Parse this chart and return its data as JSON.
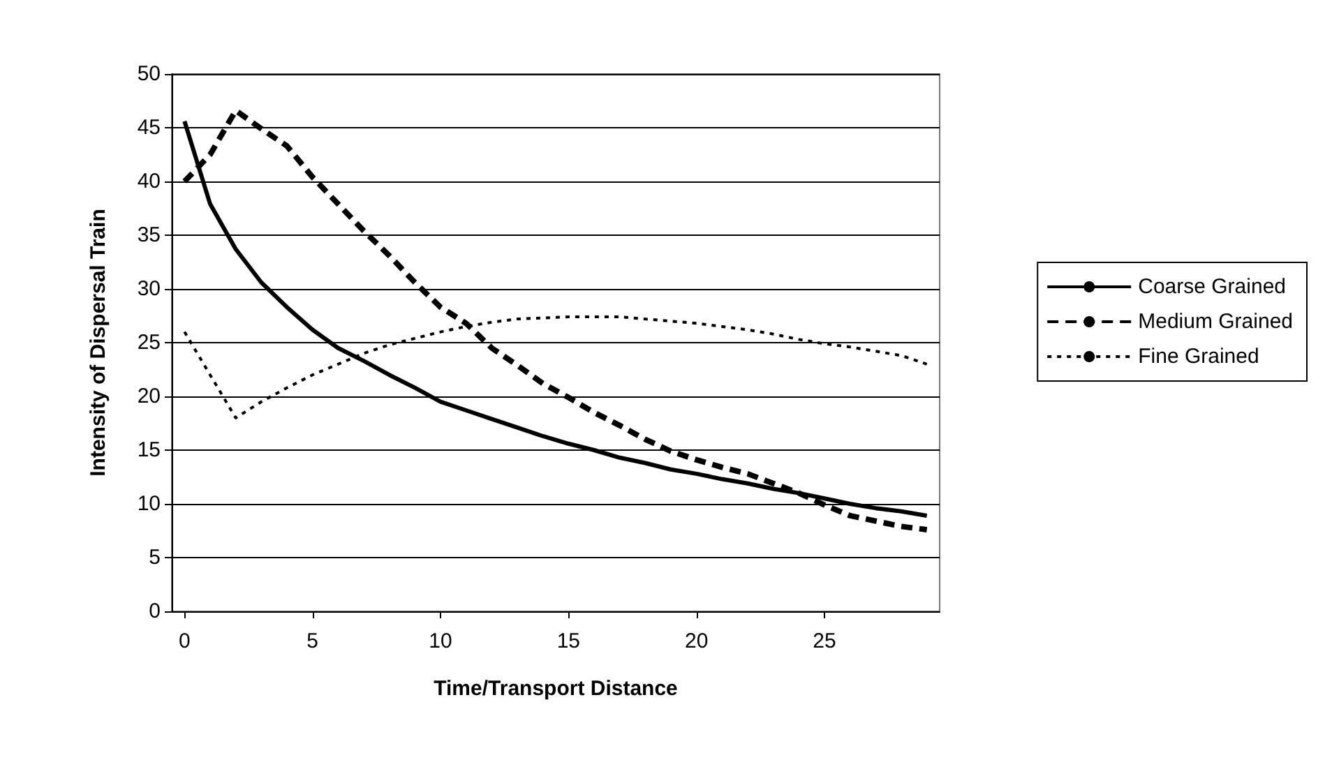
{
  "chart_data": {
    "type": "line",
    "xlabel": "Time/Transport Distance",
    "ylabel": "Intensity of Dispersal Train",
    "x": [
      0,
      1,
      2,
      3,
      4,
      5,
      6,
      7,
      8,
      9,
      10,
      11,
      12,
      13,
      14,
      15,
      16,
      17,
      18,
      19,
      20,
      21,
      22,
      23,
      24,
      25,
      26,
      27,
      28,
      29
    ],
    "xlim": [
      -0.5,
      29.5
    ],
    "xticks": [
      0,
      5,
      10,
      15,
      20,
      25
    ],
    "ylim": [
      0,
      50
    ],
    "yticks": [
      0,
      5,
      10,
      15,
      20,
      25,
      30,
      35,
      40,
      45,
      50
    ],
    "grid": "y",
    "legend": "right",
    "marker": "none",
    "series": [
      {
        "name": "Coarse Grained",
        "color": "#000000",
        "line_style": "solid",
        "values": [
          45.6,
          37.9,
          33.7,
          30.6,
          28.3,
          26.2,
          24.5,
          23.3,
          22.0,
          20.8,
          19.5,
          18.7,
          17.9,
          17.1,
          16.3,
          15.6,
          15.0,
          14.3,
          13.8,
          13.2,
          12.8,
          12.3,
          11.9,
          11.4,
          11.0,
          10.5,
          10.0,
          9.6,
          9.3,
          8.9
        ]
      },
      {
        "name": "Medium Grained",
        "color": "#000000",
        "line_style": "dashed",
        "values": [
          40,
          42.5,
          46.6,
          44.9,
          43.3,
          40.4,
          37.9,
          35.4,
          33.1,
          30.6,
          28.3,
          26.8,
          24.5,
          22.9,
          21.2,
          19.9,
          18.5,
          17.3,
          16.0,
          14.9,
          14.1,
          13.4,
          12.8,
          11.9,
          11.0,
          9.9,
          8.9,
          8.4,
          7.9,
          7.6
        ]
      },
      {
        "name": "Fine Grained",
        "color": "#000000",
        "line_style": "dotted",
        "values": [
          26,
          22,
          18,
          19.5,
          20.8,
          22,
          23,
          24,
          24.8,
          25.4,
          26,
          26.5,
          26.9,
          27.2,
          27.3,
          27.4,
          27.4,
          27.4,
          27.2,
          27.0,
          26.8,
          26.5,
          26.2,
          25.8,
          25.3,
          24.9,
          24.6,
          24.2,
          23.8,
          23.0
        ]
      }
    ]
  }
}
